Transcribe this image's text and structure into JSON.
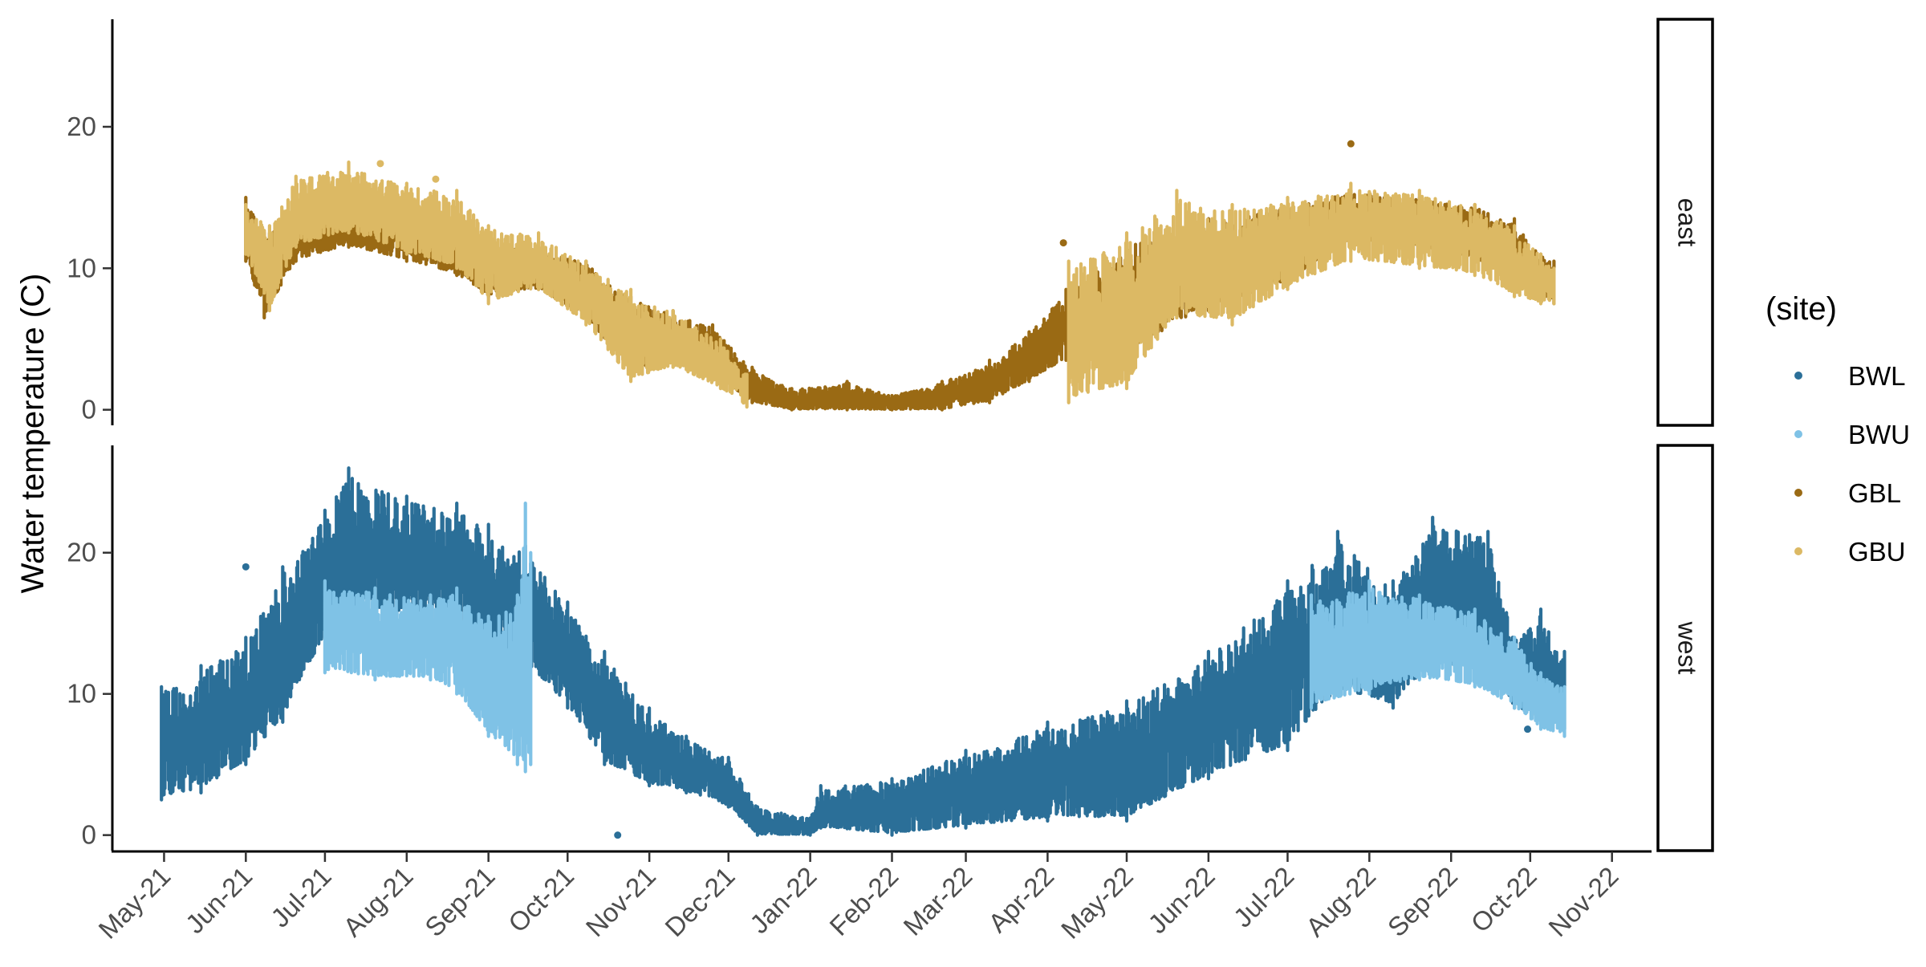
{
  "chart_data": {
    "type": "scatter",
    "ylabel": "Water temperature (C)",
    "xlabel": "",
    "ylim": [
      -1.1,
      27.6
    ],
    "y_ticks": [
      0,
      10,
      20
    ],
    "x_range": [
      "2021-04-12",
      "2022-11-16"
    ],
    "x_ticks": [
      {
        "date": "2021-05-01",
        "label": "May-21"
      },
      {
        "date": "2021-06-01",
        "label": "Jun-21"
      },
      {
        "date": "2021-07-01",
        "label": "Jul-21"
      },
      {
        "date": "2021-08-01",
        "label": "Aug-21"
      },
      {
        "date": "2021-09-01",
        "label": "Sep-21"
      },
      {
        "date": "2021-10-01",
        "label": "Oct-21"
      },
      {
        "date": "2021-11-01",
        "label": "Nov-21"
      },
      {
        "date": "2021-12-01",
        "label": "Dec-21"
      },
      {
        "date": "2022-01-01",
        "label": "Jan-22"
      },
      {
        "date": "2022-02-01",
        "label": "Feb-22"
      },
      {
        "date": "2022-03-01",
        "label": "Mar-22"
      },
      {
        "date": "2022-04-01",
        "label": "Apr-22"
      },
      {
        "date": "2022-05-01",
        "label": "May-22"
      },
      {
        "date": "2022-06-01",
        "label": "Jun-22"
      },
      {
        "date": "2022-07-01",
        "label": "Jul-22"
      },
      {
        "date": "2022-08-01",
        "label": "Aug-22"
      },
      {
        "date": "2022-09-01",
        "label": "Sep-22"
      },
      {
        "date": "2022-10-01",
        "label": "Oct-22"
      },
      {
        "date": "2022-11-01",
        "label": "Nov-22"
      }
    ],
    "legend": {
      "title": "(site)",
      "position": "right",
      "entries": [
        {
          "name": "BWL",
          "color": "#2b6f98"
        },
        {
          "name": "BWU",
          "color": "#7fc2e6"
        },
        {
          "name": "GBL",
          "color": "#9a6a14"
        },
        {
          "name": "GBU",
          "color": "#dcb964"
        }
      ]
    },
    "grid": false,
    "panels": [
      {
        "facet": "east",
        "series": [
          {
            "name": "GBL",
            "color": "#9a6a14",
            "band": [
              {
                "date": "2021-06-01",
                "low": 10.5,
                "high": 15.0
              },
              {
                "date": "2021-06-08",
                "low": 6.5,
                "high": 12.5
              },
              {
                "date": "2021-06-20",
                "low": 10.5,
                "high": 14.5
              },
              {
                "date": "2021-07-10",
                "low": 11.5,
                "high": 15.5
              },
              {
                "date": "2021-08-01",
                "low": 10.5,
                "high": 14.5
              },
              {
                "date": "2021-08-20",
                "low": 9.5,
                "high": 13.5
              },
              {
                "date": "2021-09-01",
                "low": 8.0,
                "high": 12.0
              },
              {
                "date": "2021-09-20",
                "low": 8.5,
                "high": 11.5
              },
              {
                "date": "2021-10-08",
                "low": 6.5,
                "high": 10.5
              },
              {
                "date": "2021-10-25",
                "low": 2.5,
                "high": 8.0
              },
              {
                "date": "2021-11-10",
                "low": 3.5,
                "high": 7.0
              },
              {
                "date": "2021-11-25",
                "low": 2.5,
                "high": 6.0
              },
              {
                "date": "2021-12-10",
                "low": 0.5,
                "high": 3.0
              },
              {
                "date": "2021-12-25",
                "low": 0.0,
                "high": 1.5
              },
              {
                "date": "2022-01-15",
                "low": 0.0,
                "high": 2.0
              },
              {
                "date": "2022-02-01",
                "low": 0.0,
                "high": 1.0
              },
              {
                "date": "2022-02-20",
                "low": 0.0,
                "high": 2.0
              },
              {
                "date": "2022-03-10",
                "low": 0.5,
                "high": 3.5
              },
              {
                "date": "2022-03-25",
                "low": 2.0,
                "high": 5.5
              },
              {
                "date": "2022-04-08",
                "low": 3.5,
                "high": 8.5
              },
              {
                "date": "2022-05-01",
                "low": 4.0,
                "high": 12.0
              },
              {
                "date": "2022-06-01",
                "low": 7.0,
                "high": 13.5
              },
              {
                "date": "2022-07-01",
                "low": 9.0,
                "high": 14.5
              },
              {
                "date": "2022-07-25",
                "low": 12.0,
                "high": 15.5
              },
              {
                "date": "2022-08-20",
                "low": 11.5,
                "high": 15.0
              },
              {
                "date": "2022-09-10",
                "low": 10.5,
                "high": 14.5
              },
              {
                "date": "2022-09-25",
                "low": 9.0,
                "high": 13.5
              },
              {
                "date": "2022-10-05",
                "low": 8.0,
                "high": 11.0
              },
              {
                "date": "2022-10-10",
                "low": 7.5,
                "high": 10.5
              }
            ],
            "points": [
              {
                "date": "2022-04-07",
                "value": 11.8
              },
              {
                "date": "2022-07-25",
                "value": 18.8
              }
            ]
          },
          {
            "name": "GBU",
            "color": "#dcb964",
            "band": [
              {
                "date": "2021-06-01",
                "low": 11.0,
                "high": 14.5
              },
              {
                "date": "2021-06-10",
                "low": 7.0,
                "high": 13.0
              },
              {
                "date": "2021-06-20",
                "low": 11.5,
                "high": 16.5
              },
              {
                "date": "2021-07-10",
                "low": 12.5,
                "high": 17.5
              },
              {
                "date": "2021-08-01",
                "low": 11.0,
                "high": 16.0
              },
              {
                "date": "2021-08-20",
                "low": 10.0,
                "high": 15.5
              },
              {
                "date": "2021-09-01",
                "low": 7.5,
                "high": 13.0
              },
              {
                "date": "2021-09-20",
                "low": 8.5,
                "high": 12.5
              },
              {
                "date": "2021-10-08",
                "low": 6.0,
                "high": 10.5
              },
              {
                "date": "2021-10-25",
                "low": 2.0,
                "high": 8.5
              },
              {
                "date": "2021-11-10",
                "low": 3.0,
                "high": 7.0
              },
              {
                "date": "2021-11-28",
                "low": 1.5,
                "high": 5.0
              },
              {
                "date": "2021-12-08",
                "low": 0.2,
                "high": 2.5
              },
              {
                "date": "2022-04-09",
                "low": 0.5,
                "high": 10.5
              },
              {
                "date": "2022-05-01",
                "low": 1.5,
                "high": 12.5
              },
              {
                "date": "2022-05-20",
                "low": 6.5,
                "high": 15.5
              },
              {
                "date": "2022-06-10",
                "low": 6.0,
                "high": 14.5
              },
              {
                "date": "2022-07-01",
                "low": 8.5,
                "high": 15.0
              },
              {
                "date": "2022-07-25",
                "low": 10.5,
                "high": 16.0
              },
              {
                "date": "2022-08-20",
                "low": 10.0,
                "high": 15.5
              },
              {
                "date": "2022-09-10",
                "low": 9.5,
                "high": 14.5
              },
              {
                "date": "2022-09-25",
                "low": 8.0,
                "high": 13.0
              },
              {
                "date": "2022-10-05",
                "low": 7.5,
                "high": 11.0
              },
              {
                "date": "2022-10-10",
                "low": 7.5,
                "high": 10.0
              }
            ],
            "points": [
              {
                "date": "2021-07-22",
                "value": 17.4
              },
              {
                "date": "2021-08-12",
                "value": 16.3
              }
            ]
          }
        ]
      },
      {
        "facet": "west",
        "series": [
          {
            "name": "BWL",
            "color": "#2b6f98",
            "band": [
              {
                "date": "2021-04-30",
                "low": 2.5,
                "high": 10.5
              },
              {
                "date": "2021-05-15",
                "low": 3.0,
                "high": 12.0
              },
              {
                "date": "2021-06-01",
                "low": 5.0,
                "high": 14.0
              },
              {
                "date": "2021-06-15",
                "low": 8.0,
                "high": 19.0
              },
              {
                "date": "2021-07-01",
                "low": 14.0,
                "high": 23.0
              },
              {
                "date": "2021-07-10",
                "low": 16.0,
                "high": 26.0
              },
              {
                "date": "2021-08-01",
                "low": 15.5,
                "high": 24.0
              },
              {
                "date": "2021-08-20",
                "low": 14.5,
                "high": 23.5
              },
              {
                "date": "2021-09-01",
                "low": 12.0,
                "high": 22.0
              },
              {
                "date": "2021-09-15",
                "low": 12.0,
                "high": 20.5
              },
              {
                "date": "2021-10-01",
                "low": 9.0,
                "high": 16.5
              },
              {
                "date": "2021-10-15",
                "low": 5.0,
                "high": 13.0
              },
              {
                "date": "2021-11-01",
                "low": 3.5,
                "high": 9.0
              },
              {
                "date": "2021-11-15",
                "low": 3.0,
                "high": 7.0
              },
              {
                "date": "2021-12-01",
                "low": 2.0,
                "high": 5.5
              },
              {
                "date": "2021-12-12",
                "low": 0.0,
                "high": 2.0
              },
              {
                "date": "2022-01-01",
                "low": 0.0,
                "high": 1.2
              },
              {
                "date": "2022-01-05",
                "low": 0.5,
                "high": 3.5
              },
              {
                "date": "2022-02-01",
                "low": 0.0,
                "high": 4.0
              },
              {
                "date": "2022-03-01",
                "low": 0.5,
                "high": 6.0
              },
              {
                "date": "2022-04-01",
                "low": 1.0,
                "high": 8.0
              },
              {
                "date": "2022-05-01",
                "low": 1.0,
                "high": 9.5
              },
              {
                "date": "2022-06-01",
                "low": 4.0,
                "high": 13.0
              },
              {
                "date": "2022-07-01",
                "low": 6.0,
                "high": 18.0
              },
              {
                "date": "2022-07-20",
                "low": 10.0,
                "high": 21.5
              },
              {
                "date": "2022-08-10",
                "low": 9.0,
                "high": 18.0
              },
              {
                "date": "2022-08-25",
                "low": 12.0,
                "high": 22.5
              },
              {
                "date": "2022-09-15",
                "low": 11.0,
                "high": 21.5
              },
              {
                "date": "2022-09-25",
                "low": 9.0,
                "high": 14.0
              },
              {
                "date": "2022-10-05",
                "low": 8.0,
                "high": 16.0
              },
              {
                "date": "2022-10-14",
                "low": 7.5,
                "high": 13.0
              }
            ],
            "points": [
              {
                "date": "2021-06-01",
                "value": 19.0
              },
              {
                "date": "2021-10-20",
                "value": 0.0
              },
              {
                "date": "2022-09-30",
                "value": 7.5
              }
            ]
          },
          {
            "name": "BWU",
            "color": "#7fc2e6",
            "band": [
              {
                "date": "2021-07-01",
                "low": 11.5,
                "high": 18.0
              },
              {
                "date": "2021-07-20",
                "low": 11.0,
                "high": 17.5
              },
              {
                "date": "2021-08-10",
                "low": 11.0,
                "high": 17.0
              },
              {
                "date": "2021-08-20",
                "low": 10.0,
                "high": 17.5
              },
              {
                "date": "2021-09-01",
                "low": 7.0,
                "high": 15.5
              },
              {
                "date": "2021-09-12",
                "low": 5.0,
                "high": 17.0
              },
              {
                "date": "2021-09-15",
                "low": 4.5,
                "high": 23.5
              },
              {
                "date": "2021-09-17",
                "low": 5.0,
                "high": 20.0
              },
              {
                "date": "2022-07-10",
                "low": 9.0,
                "high": 17.0
              },
              {
                "date": "2022-08-01",
                "low": 10.0,
                "high": 18.0
              },
              {
                "date": "2022-08-20",
                "low": 11.0,
                "high": 17.0
              },
              {
                "date": "2022-09-10",
                "low": 10.5,
                "high": 16.0
              },
              {
                "date": "2022-09-25",
                "low": 9.0,
                "high": 14.0
              },
              {
                "date": "2022-10-05",
                "low": 7.5,
                "high": 11.5
              },
              {
                "date": "2022-10-14",
                "low": 7.0,
                "high": 10.5
              }
            ],
            "points": []
          }
        ]
      }
    ]
  }
}
